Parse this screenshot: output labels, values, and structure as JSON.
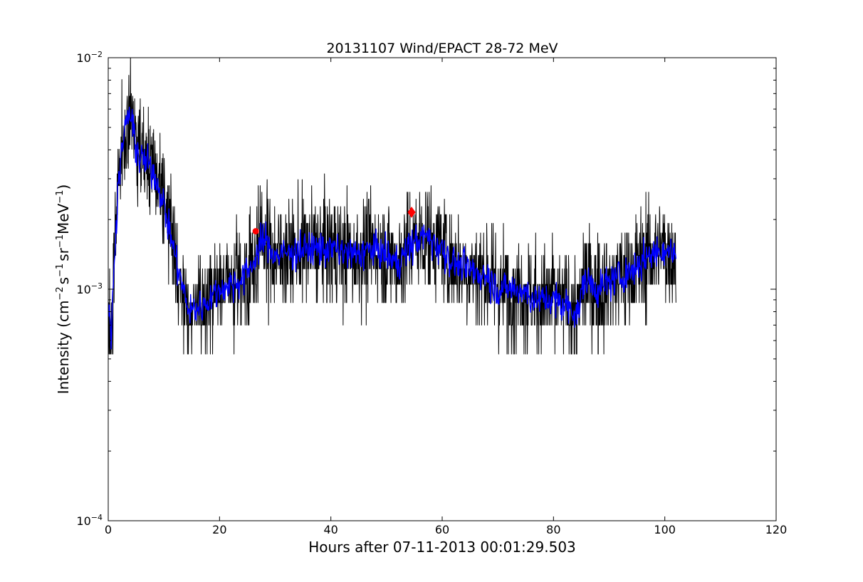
{
  "chart_data": {
    "type": "line",
    "title": "20131107 Wind/EPACT 28-72 MeV",
    "xlabel": "Hours after 07-11-2013 00:01:29.503",
    "ylabel": {
      "prefix": "Intensity (cm",
      "sup1": "−2",
      "mid1": "s",
      "sup2": "−1",
      "mid2": "sr",
      "sup3": "−1",
      "mid3": "MeV",
      "sup4": "−1",
      "suffix": ")"
    },
    "xlim": [
      0,
      120
    ],
    "ylim": [
      0.0001,
      0.01
    ],
    "yscale": "log",
    "grid": false,
    "x_ticks": [
      0,
      20,
      40,
      60,
      80,
      100,
      120
    ],
    "y_ticks": [
      {
        "value": 0.0001,
        "base": "10",
        "exp": "−4"
      },
      {
        "value": 0.001,
        "base": "10",
        "exp": "−3"
      },
      {
        "value": 0.01,
        "base": "10",
        "exp": "−2"
      }
    ],
    "series": [
      {
        "color": "#000000",
        "style": "raw",
        "x_start": 0.0,
        "x_end": 102.0,
        "x_step": 0.05,
        "profile": [
          [
            0.0,
            0.0008
          ],
          [
            0.6,
            0.00065
          ],
          [
            1.2,
            0.0016
          ],
          [
            2.0,
            0.0033
          ],
          [
            3.2,
            0.0052
          ],
          [
            3.8,
            0.0058
          ],
          [
            4.5,
            0.0048
          ],
          [
            5.5,
            0.0037
          ],
          [
            7.0,
            0.0035
          ],
          [
            8.5,
            0.0031
          ],
          [
            10.0,
            0.0023
          ],
          [
            11.5,
            0.0016
          ],
          [
            13.0,
            0.0011
          ],
          [
            14.5,
            0.0008
          ],
          [
            17.0,
            0.00085
          ],
          [
            20.0,
            0.001
          ],
          [
            22.0,
            0.00105
          ],
          [
            24.0,
            0.0011
          ],
          [
            26.0,
            0.0013
          ],
          [
            28.0,
            0.00165
          ],
          [
            30.0,
            0.0014
          ],
          [
            33.0,
            0.00145
          ],
          [
            36.0,
            0.0015
          ],
          [
            40.0,
            0.0015
          ],
          [
            44.0,
            0.0014
          ],
          [
            48.0,
            0.0015
          ],
          [
            52.0,
            0.0013
          ],
          [
            55.0,
            0.0016
          ],
          [
            57.0,
            0.0017
          ],
          [
            60.0,
            0.0015
          ],
          [
            62.0,
            0.0013
          ],
          [
            65.0,
            0.0012
          ],
          [
            68.0,
            0.00115
          ],
          [
            70.0,
            0.001
          ],
          [
            74.0,
            0.001
          ],
          [
            77.0,
            0.0009
          ],
          [
            80.0,
            0.0009
          ],
          [
            82.0,
            0.00085
          ],
          [
            84.5,
            0.0008
          ],
          [
            85.5,
            0.0011
          ],
          [
            88.0,
            0.001
          ],
          [
            91.0,
            0.0011
          ],
          [
            94.0,
            0.0012
          ],
          [
            97.0,
            0.0014
          ],
          [
            100.0,
            0.0015
          ],
          [
            102.0,
            0.0014
          ]
        ]
      },
      {
        "color": "#0000ff",
        "style": "smoothed",
        "x_start": 0.0,
        "x_end": 102.0,
        "x_step": 0.1,
        "profile": [
          [
            0.0,
            0.0008
          ],
          [
            0.6,
            0.00065
          ],
          [
            1.2,
            0.0016
          ],
          [
            2.0,
            0.0033
          ],
          [
            3.2,
            0.0052
          ],
          [
            3.8,
            0.0058
          ],
          [
            4.5,
            0.0048
          ],
          [
            5.5,
            0.0037
          ],
          [
            7.0,
            0.0035
          ],
          [
            8.5,
            0.0031
          ],
          [
            10.0,
            0.0023
          ],
          [
            11.5,
            0.0016
          ],
          [
            13.0,
            0.0011
          ],
          [
            14.5,
            0.0008
          ],
          [
            17.0,
            0.00085
          ],
          [
            20.0,
            0.001
          ],
          [
            22.0,
            0.00105
          ],
          [
            24.0,
            0.0011
          ],
          [
            26.0,
            0.0013
          ],
          [
            28.0,
            0.00165
          ],
          [
            30.0,
            0.0014
          ],
          [
            33.0,
            0.00145
          ],
          [
            36.0,
            0.0015
          ],
          [
            40.0,
            0.0015
          ],
          [
            44.0,
            0.0014
          ],
          [
            48.0,
            0.0015
          ],
          [
            52.0,
            0.0013
          ],
          [
            55.0,
            0.0016
          ],
          [
            57.0,
            0.0017
          ],
          [
            60.0,
            0.0015
          ],
          [
            62.0,
            0.0013
          ],
          [
            65.0,
            0.0012
          ],
          [
            68.0,
            0.00115
          ],
          [
            70.0,
            0.001
          ],
          [
            74.0,
            0.001
          ],
          [
            77.0,
            0.0009
          ],
          [
            80.0,
            0.0009
          ],
          [
            82.0,
            0.00085
          ],
          [
            84.5,
            0.0008
          ],
          [
            85.5,
            0.0011
          ],
          [
            88.0,
            0.001
          ],
          [
            91.0,
            0.0011
          ],
          [
            94.0,
            0.0012
          ],
          [
            97.0,
            0.0014
          ],
          [
            100.0,
            0.0015
          ],
          [
            102.0,
            0.0014
          ]
        ]
      }
    ],
    "markers": [
      {
        "x": 26.5,
        "y": 0.00178,
        "color": "#ff0000",
        "shape": "circle"
      },
      {
        "x": 54.5,
        "y": 0.00215,
        "color": "#ff0000",
        "shape": "diamond"
      }
    ]
  }
}
